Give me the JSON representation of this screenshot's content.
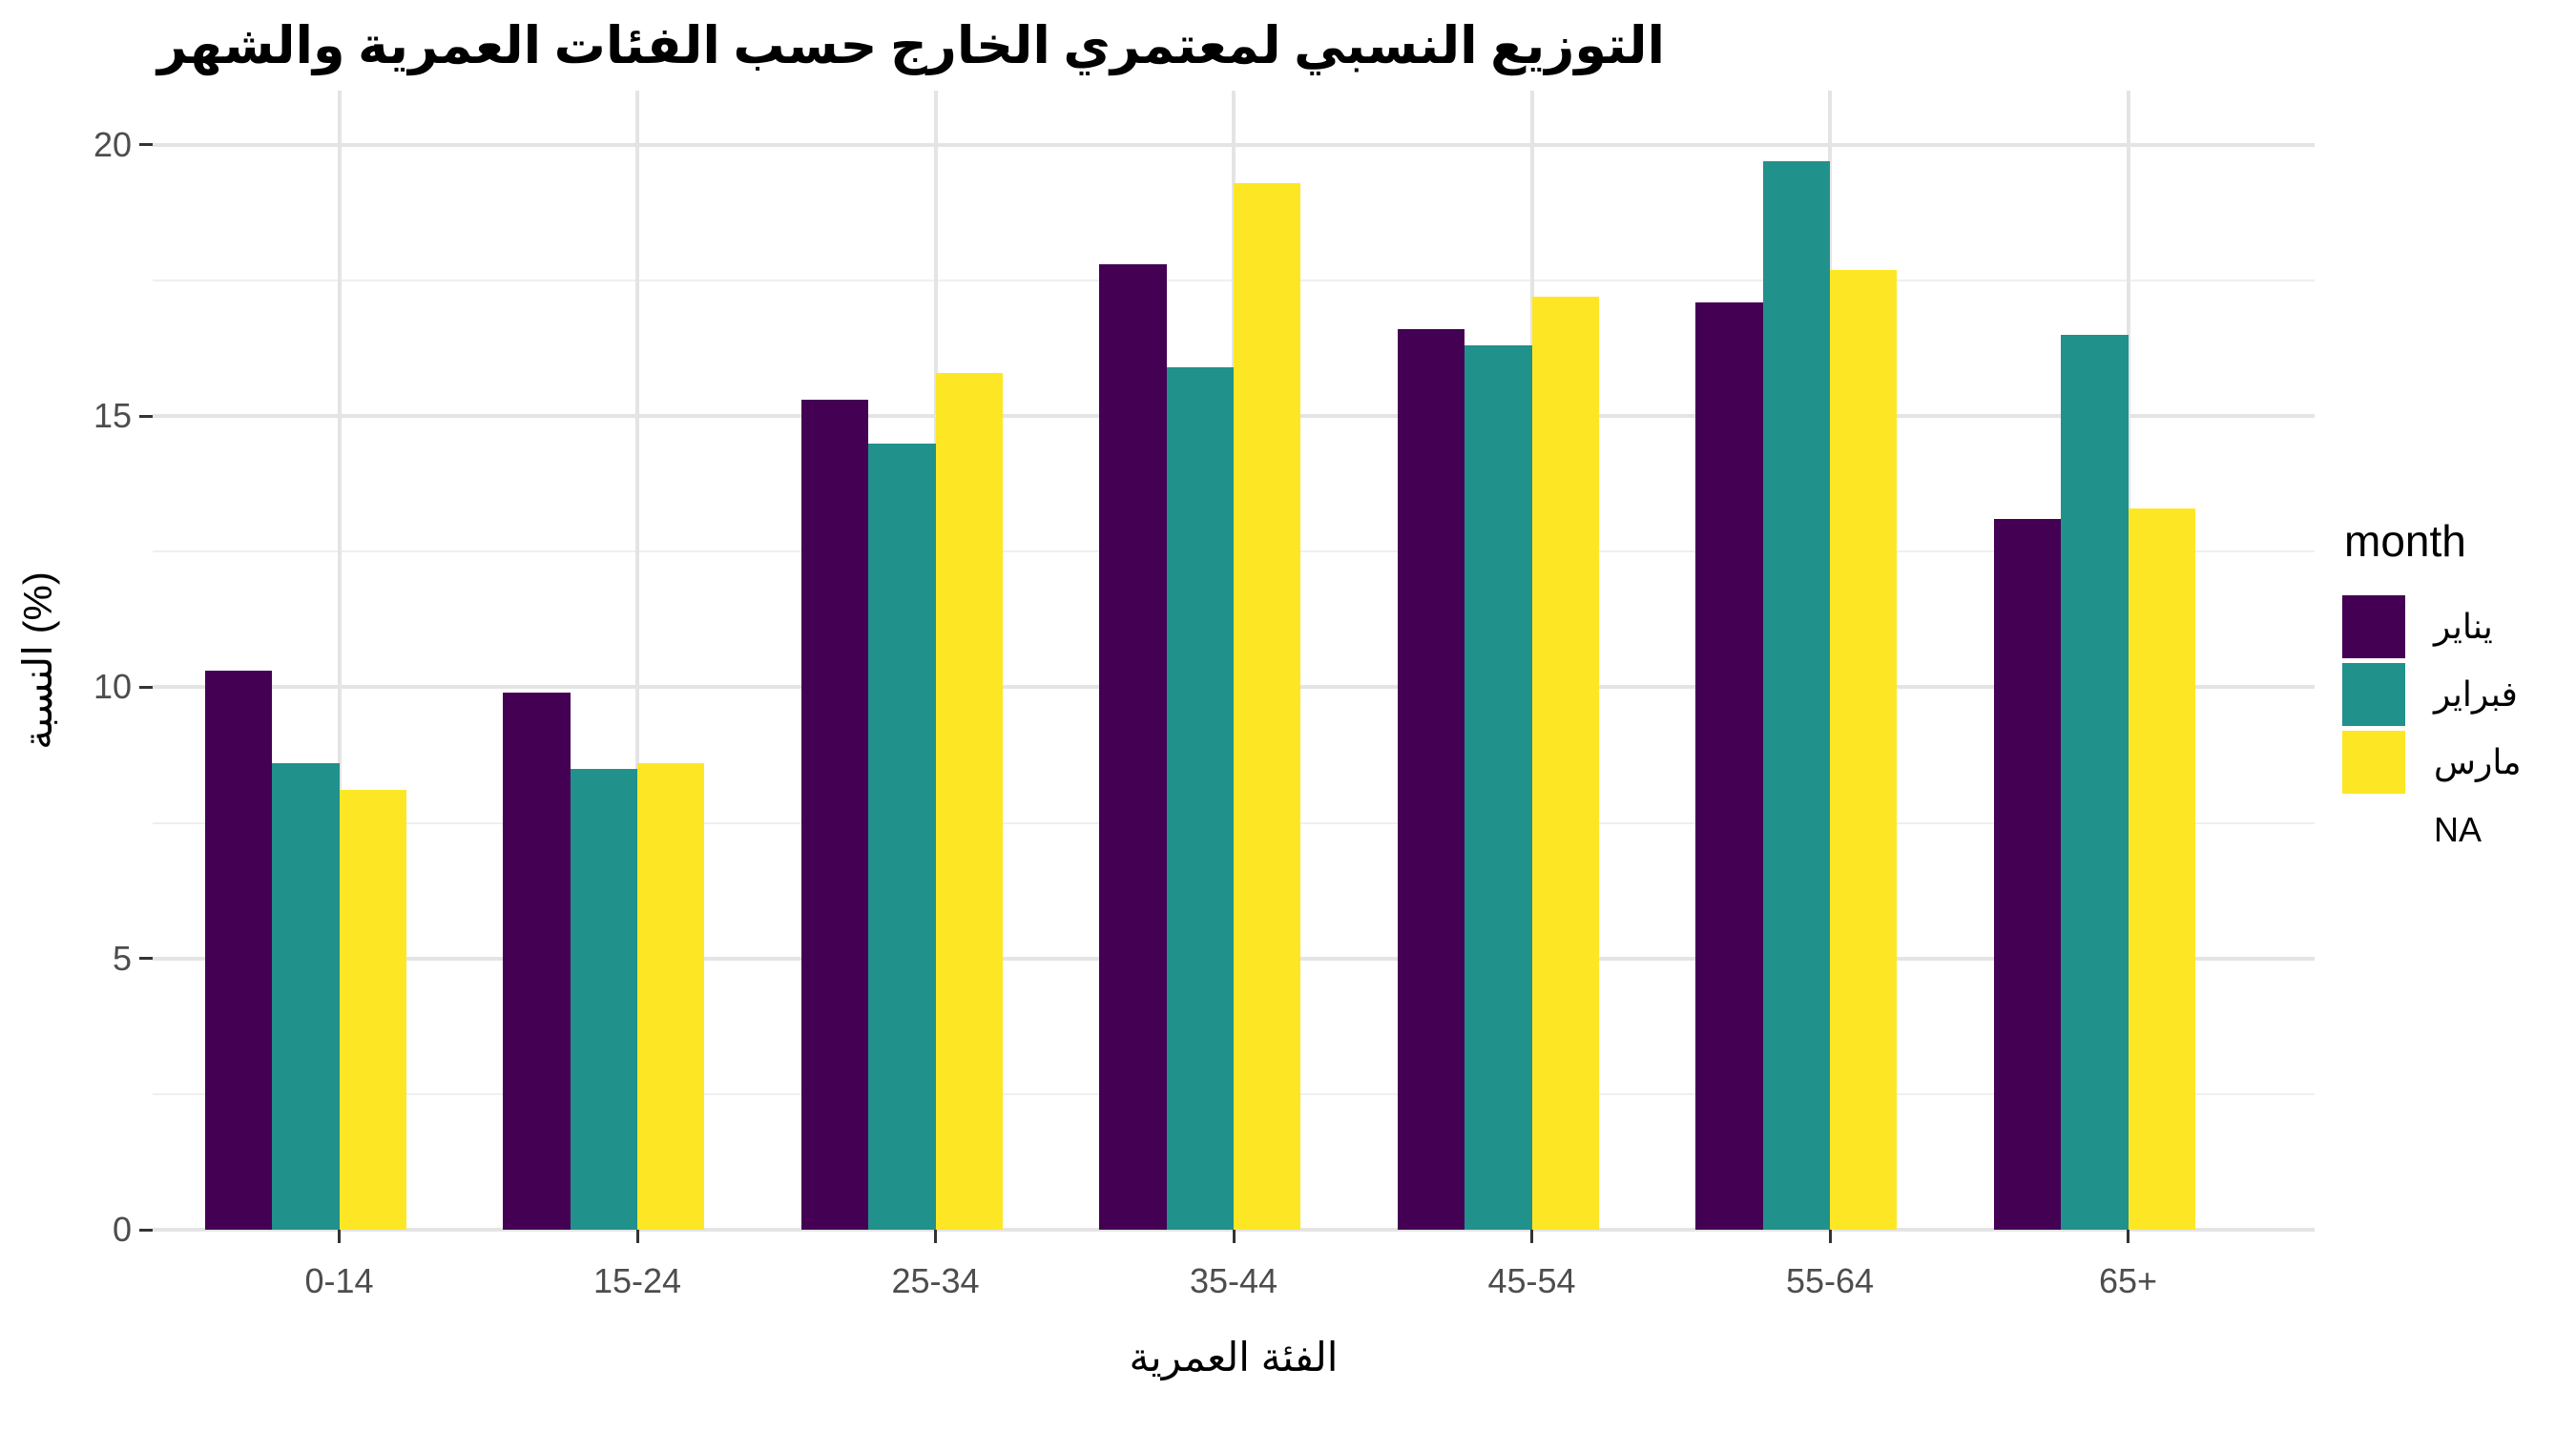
{
  "chart_data": {
    "type": "bar",
    "title": "التوزيع النسبي لمعتمري الخارج حسب الفئات العمرية والشهر",
    "xlabel": "الفئة العمرية",
    "ylabel": "النسبة (%)",
    "legend_title": "month",
    "legend_position": "right",
    "grid": true,
    "ylim": [
      0,
      20
    ],
    "yticks": [
      0,
      5,
      10,
      15,
      20
    ],
    "yticks_minor": [
      2.5,
      7.5,
      12.5,
      17.5
    ],
    "categories": [
      "0-14",
      "15-24",
      "25-34",
      "35-44",
      "45-54",
      "55-64",
      "65+"
    ],
    "series": [
      {
        "name": "يناير",
        "color": "#440154",
        "values": [
          10.3,
          9.9,
          15.3,
          17.8,
          16.6,
          17.1,
          13.1
        ]
      },
      {
        "name": "فبراير",
        "color": "#21918c",
        "values": [
          8.6,
          8.5,
          14.5,
          15.9,
          16.3,
          19.7,
          16.5
        ]
      },
      {
        "name": "مارس",
        "color": "#fde725",
        "values": [
          8.1,
          8.6,
          15.8,
          19.3,
          17.2,
          17.7,
          13.3
        ]
      },
      {
        "name": "NA",
        "color": "#ffffff",
        "values": [
          null,
          null,
          null,
          null,
          null,
          null,
          null
        ]
      }
    ]
  }
}
